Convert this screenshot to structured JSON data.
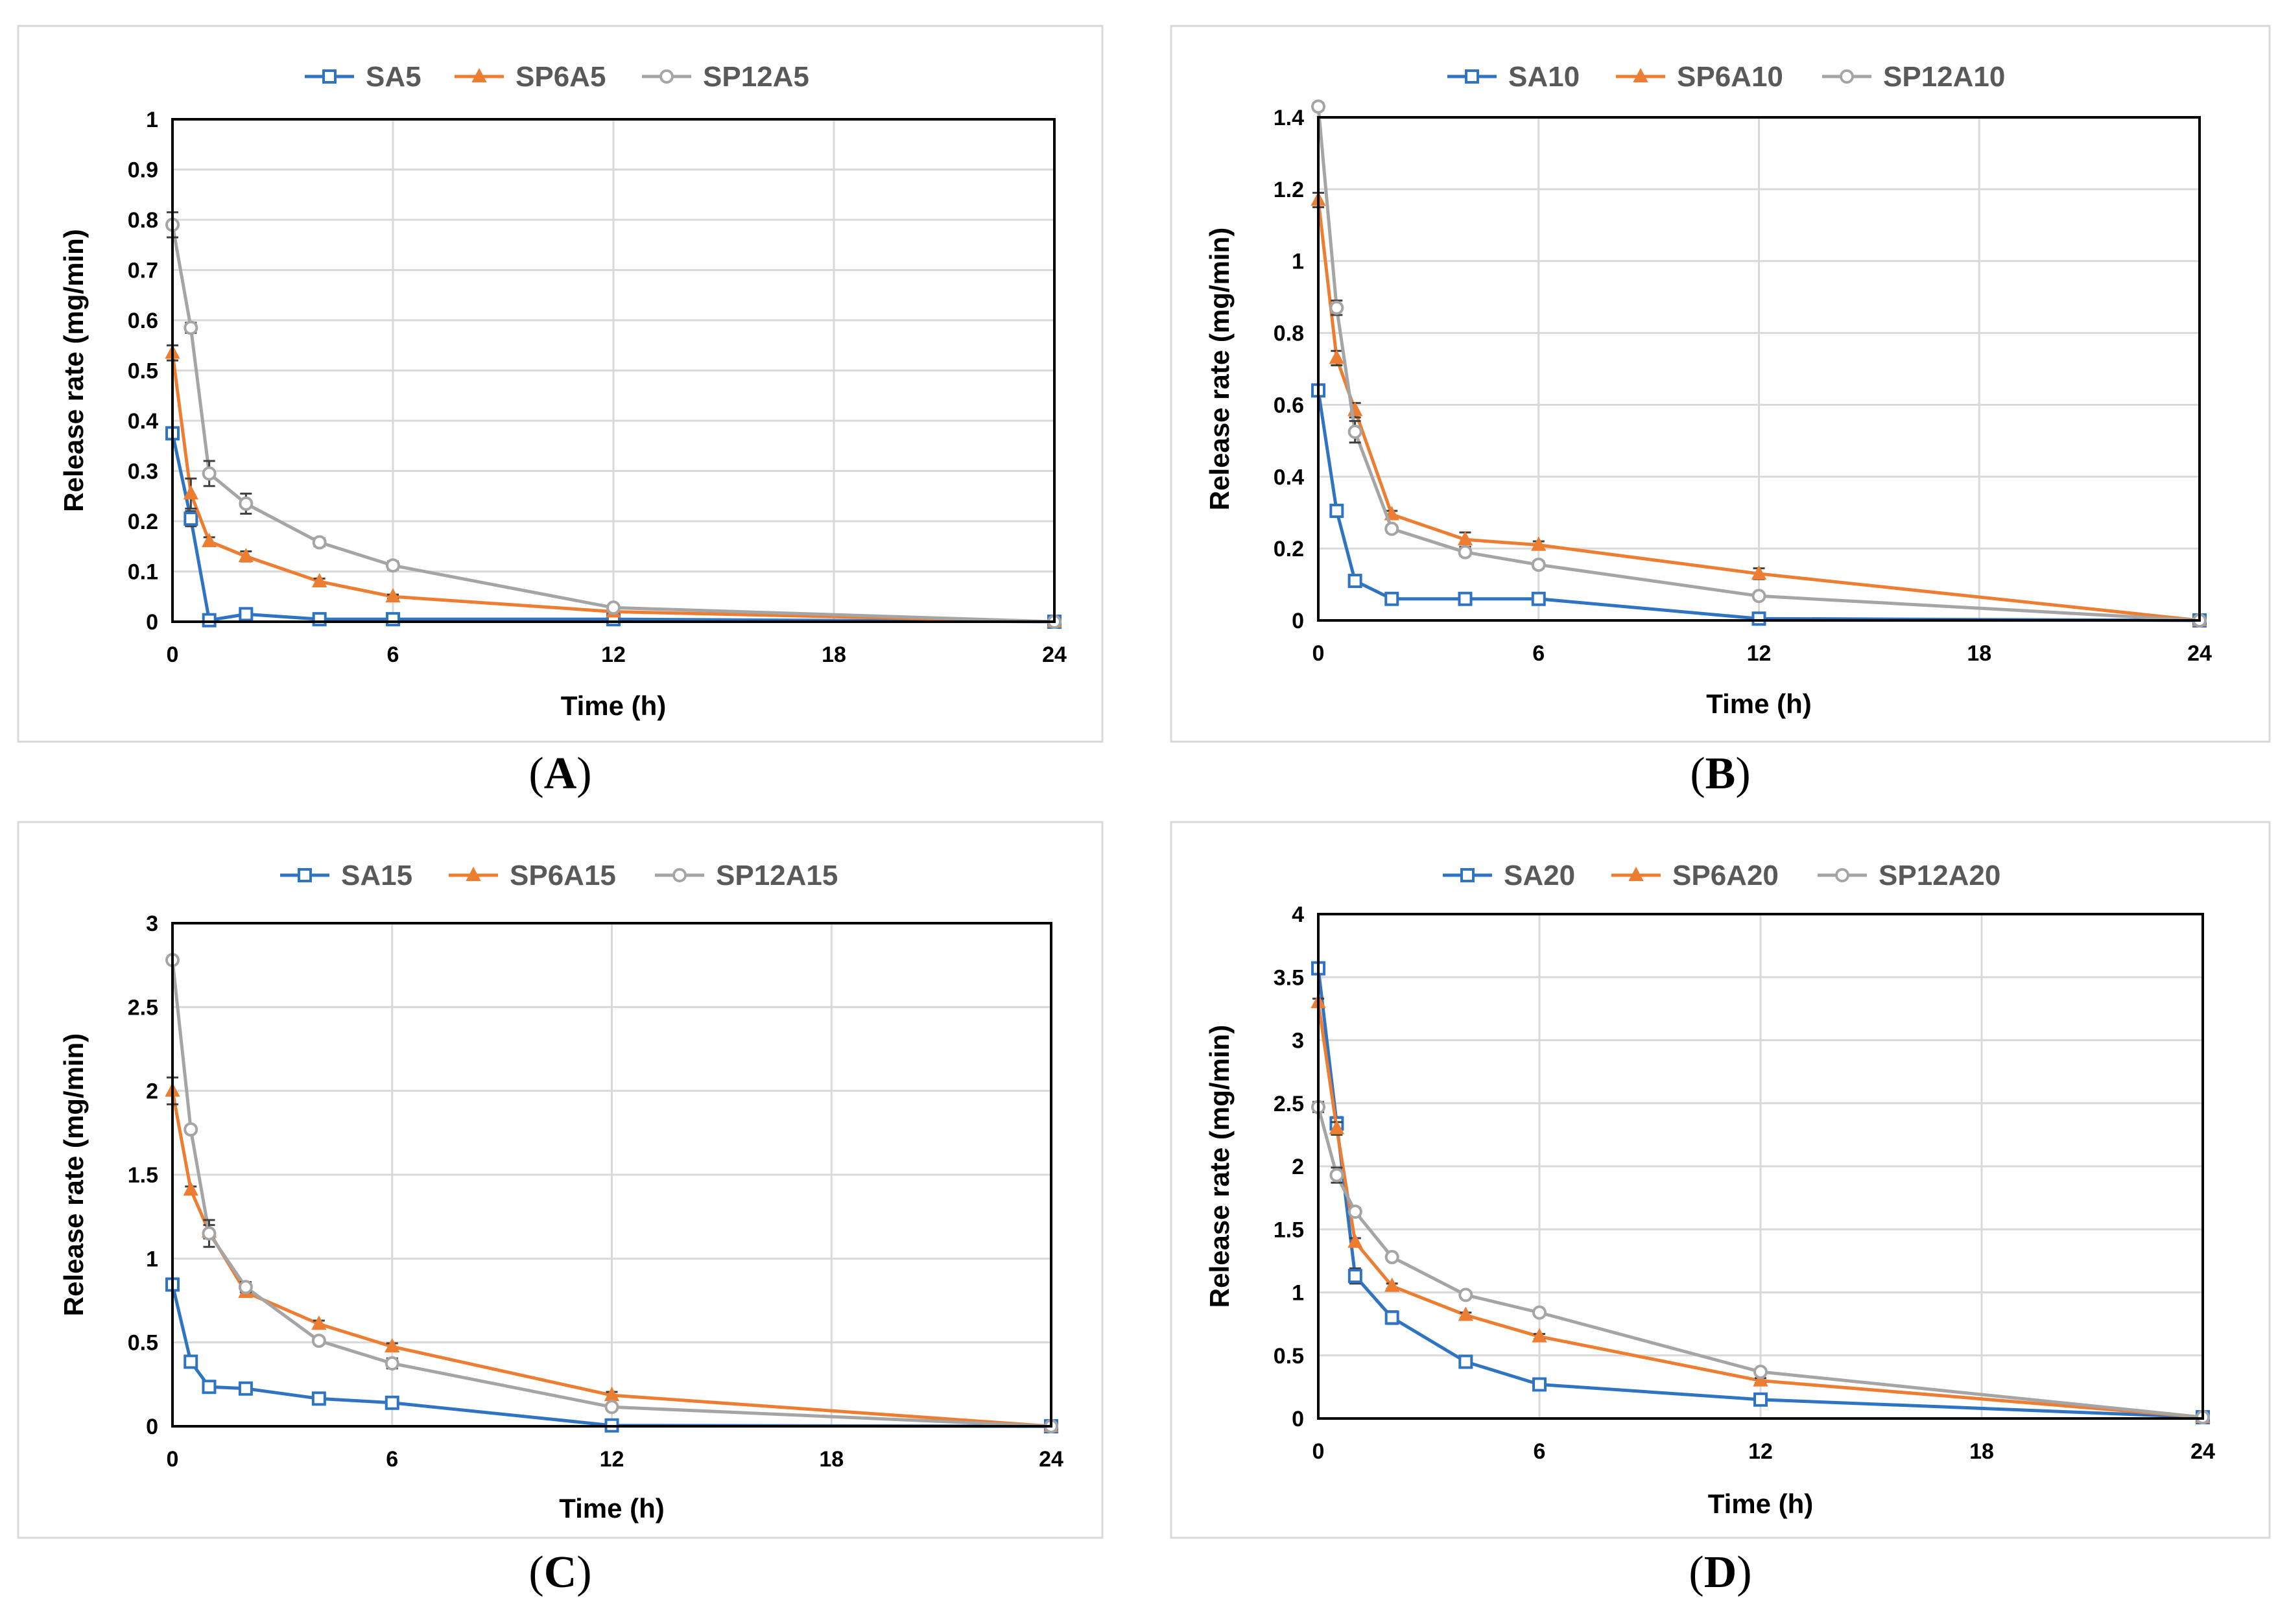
{
  "figure": {
    "xlabel": "Time (h)",
    "ylabel": "Release rate (mg/min)"
  },
  "colors": {
    "series": [
      "#2f74c2",
      "#ed7d31",
      "#a5a5a5"
    ],
    "grid": "#d9d9d9",
    "frame": "#000000"
  },
  "chart_data": [
    {
      "type": "line",
      "panel": "A",
      "title": "",
      "xlabel": "Time (h)",
      "ylabel": "Release rate (mg/min)",
      "xlim": [
        0,
        24
      ],
      "xticks": [
        0,
        6,
        12,
        18,
        24
      ],
      "ylim": [
        0,
        1
      ],
      "yticks": [
        "0",
        "0.1",
        "0.2",
        "0.3",
        "0.4",
        "0.5",
        "0.6",
        "0.7",
        "0.8",
        "0.9",
        "1"
      ],
      "x": [
        0,
        0.5,
        1,
        2,
        4,
        6,
        12,
        24
      ],
      "series": [
        {
          "name": "SA5",
          "marker": "square",
          "values": [
            0.375,
            0.205,
            0.003,
            0.015,
            0.005,
            0.005,
            0.005,
            0.0
          ],
          "errors": [
            0.012,
            0.015,
            0.003,
            0.008,
            0.003,
            0.003,
            0.003,
            0.0
          ]
        },
        {
          "name": "SP6A5",
          "marker": "triangle",
          "values": [
            0.535,
            0.255,
            0.16,
            0.13,
            0.08,
            0.05,
            0.02,
            0.0
          ],
          "errors": [
            0.015,
            0.03,
            0.008,
            0.01,
            0.006,
            0.004,
            0.004,
            0.0
          ]
        },
        {
          "name": "SP12A5",
          "marker": "circle",
          "values": [
            0.79,
            0.585,
            0.295,
            0.235,
            0.158,
            0.112,
            0.028,
            0.0
          ],
          "errors": [
            0.025,
            0.01,
            0.025,
            0.02,
            0.008,
            0.008,
            0.005,
            0.0
          ]
        }
      ]
    },
    {
      "type": "line",
      "panel": "B",
      "title": "",
      "xlabel": "Time (h)",
      "ylabel": "Release rate (mg/min)",
      "xlim": [
        0,
        24
      ],
      "xticks": [
        0,
        6,
        12,
        18,
        24
      ],
      "ylim": [
        0,
        1.4
      ],
      "yticks": [
        "0",
        "0.2",
        "0.4",
        "0.6",
        "0.8",
        "1",
        "1.2",
        "1.4"
      ],
      "x": [
        0,
        0.5,
        1,
        2,
        4,
        6,
        12,
        24
      ],
      "series": [
        {
          "name": "SA10",
          "marker": "square",
          "values": [
            0.64,
            0.305,
            0.11,
            0.06,
            0.06,
            0.06,
            0.005,
            0.0
          ],
          "errors": [
            0.01,
            0.015,
            0.01,
            0.005,
            0.005,
            0.005,
            0.003,
            0.0
          ]
        },
        {
          "name": "SP6A10",
          "marker": "triangle",
          "values": [
            1.17,
            0.73,
            0.585,
            0.295,
            0.225,
            0.21,
            0.13,
            0.0
          ],
          "errors": [
            0.02,
            0.02,
            0.02,
            0.01,
            0.02,
            0.01,
            0.015,
            0.0
          ]
        },
        {
          "name": "SP12A10",
          "marker": "circle",
          "values": [
            1.43,
            0.87,
            0.525,
            0.255,
            0.19,
            0.155,
            0.068,
            0.0
          ],
          "errors": [
            0.01,
            0.02,
            0.03,
            0.01,
            0.01,
            0.01,
            0.005,
            0.0
          ]
        }
      ]
    },
    {
      "type": "line",
      "panel": "C",
      "title": "",
      "xlabel": "Time (h)",
      "ylabel": "Release rate (mg/min)",
      "xlim": [
        0,
        24
      ],
      "xticks": [
        0,
        6,
        12,
        18,
        24
      ],
      "ylim": [
        0,
        3
      ],
      "yticks": [
        "0",
        "0.5",
        "1",
        "1.5",
        "2",
        "2.5",
        "3"
      ],
      "x": [
        0,
        0.5,
        1,
        2,
        4,
        6,
        12,
        24
      ],
      "series": [
        {
          "name": "SA15",
          "marker": "square",
          "values": [
            0.845,
            0.385,
            0.235,
            0.225,
            0.165,
            0.14,
            0.005,
            0.0
          ],
          "errors": [
            0.02,
            0.02,
            0.02,
            0.02,
            0.01,
            0.01,
            0.005,
            0.0
          ]
        },
        {
          "name": "SP6A15",
          "marker": "triangle",
          "values": [
            2.0,
            1.41,
            1.16,
            0.8,
            0.61,
            0.475,
            0.185,
            0.0
          ],
          "errors": [
            0.08,
            0.02,
            0.04,
            0.02,
            0.02,
            0.02,
            0.02,
            0.0
          ]
        },
        {
          "name": "SP12A15",
          "marker": "circle",
          "values": [
            2.78,
            1.77,
            1.15,
            0.83,
            0.51,
            0.375,
            0.115,
            0.0
          ],
          "errors": [
            0.02,
            0.02,
            0.08,
            0.03,
            0.02,
            0.03,
            0.01,
            0.0
          ]
        }
      ]
    },
    {
      "type": "line",
      "panel": "D",
      "title": "",
      "xlabel": "Time (h)",
      "ylabel": "Release rate (mg/min)",
      "xlim": [
        0,
        24
      ],
      "xticks": [
        0,
        6,
        12,
        18,
        24
      ],
      "ylim": [
        0,
        4
      ],
      "yticks": [
        "0",
        "0.5",
        "1",
        "1.5",
        "2",
        "2.5",
        "3",
        "3.5",
        "4"
      ],
      "x": [
        0,
        0.5,
        1,
        2,
        4,
        6,
        12,
        24
      ],
      "series": [
        {
          "name": "SA20",
          "marker": "square",
          "values": [
            3.57,
            2.34,
            1.13,
            0.8,
            0.45,
            0.27,
            0.15,
            0.01
          ],
          "errors": [
            0.04,
            0.05,
            0.06,
            0.05,
            0.02,
            0.02,
            0.01,
            0.0
          ]
        },
        {
          "name": "SP6A20",
          "marker": "triangle",
          "values": [
            3.3,
            2.3,
            1.4,
            1.05,
            0.82,
            0.65,
            0.3,
            0.01
          ],
          "errors": [
            0.03,
            0.05,
            0.03,
            0.02,
            0.02,
            0.02,
            0.02,
            0.0
          ]
        },
        {
          "name": "SP12A20",
          "marker": "circle",
          "values": [
            2.47,
            1.93,
            1.64,
            1.28,
            0.98,
            0.84,
            0.37,
            0.01
          ],
          "errors": [
            0.04,
            0.06,
            0.03,
            0.02,
            0.02,
            0.02,
            0.02,
            0.0
          ]
        }
      ]
    }
  ]
}
